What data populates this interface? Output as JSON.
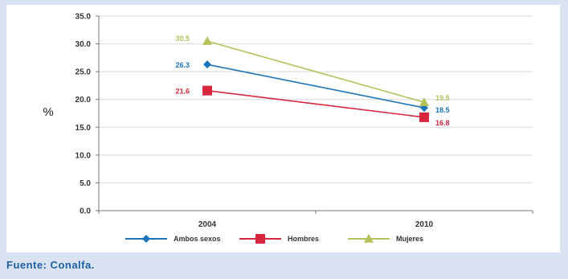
{
  "chart_data": {
    "type": "line",
    "title": "",
    "xlabel": "",
    "ylabel": "%",
    "categories": [
      "2004",
      "2010"
    ],
    "ylim": [
      0,
      35
    ],
    "yticks": [
      "0.0",
      "5.0",
      "10.0",
      "15.0",
      "20.0",
      "25.0",
      "30.0",
      "35.0"
    ],
    "grid": true,
    "legend_position": "bottom",
    "series": [
      {
        "name": "Ambos sexos",
        "values": [
          26.3,
          18.5
        ],
        "labels": [
          "26.3",
          "18.5"
        ],
        "color": "#1b75bc",
        "marker": "diamond"
      },
      {
        "name": "Hombres",
        "values": [
          21.6,
          16.8
        ],
        "labels": [
          "21.6",
          "16.8"
        ],
        "color": "#d7263d",
        "marker": "square"
      },
      {
        "name": "Mujeres",
        "values": [
          30.5,
          19.5
        ],
        "labels": [
          "30.5",
          "19.5"
        ],
        "color": "#b5c25a",
        "marker": "triangle"
      }
    ]
  },
  "source": {
    "text": "Fuente: Conalfa."
  }
}
